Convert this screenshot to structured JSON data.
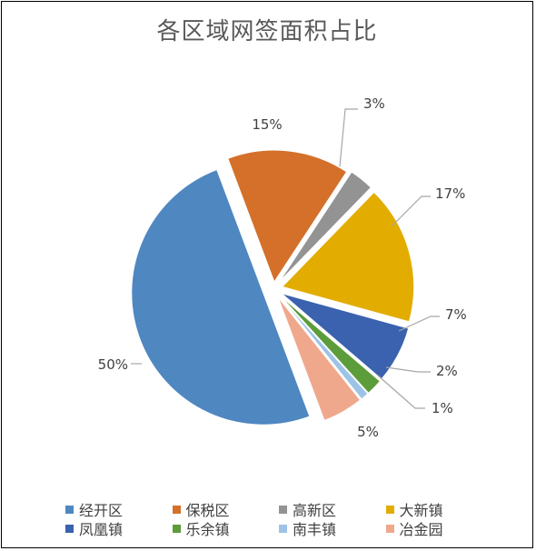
{
  "chart_data": {
    "type": "pie",
    "title": "各区域网签面积占比",
    "legend_position": "bottom",
    "slices": [
      {
        "name": "保税区",
        "value": 15,
        "label": "15%",
        "color": "#D4702A"
      },
      {
        "name": "高新区",
        "value": 3,
        "label": "3%",
        "color": "#939393"
      },
      {
        "name": "大新镇",
        "value": 17,
        "label": "17%",
        "color": "#E2AC00"
      },
      {
        "name": "凤凰镇",
        "value": 7,
        "label": "7%",
        "color": "#3A62AE"
      },
      {
        "name": "乐余镇",
        "value": 2,
        "label": "2%",
        "color": "#5C9C3A"
      },
      {
        "name": "南丰镇",
        "value": 1,
        "label": "1%",
        "color": "#9DC3E6"
      },
      {
        "name": "冶金园",
        "value": 5,
        "label": "5%",
        "color": "#F0A88C"
      },
      {
        "name": "经开区",
        "value": 50,
        "label": "50%",
        "color": "#4F87C0"
      }
    ],
    "legend": [
      "经开区",
      "保税区",
      "高新区",
      "大新镇",
      "凤凰镇",
      "乐余镇",
      "南丰镇",
      "冶金园"
    ]
  }
}
